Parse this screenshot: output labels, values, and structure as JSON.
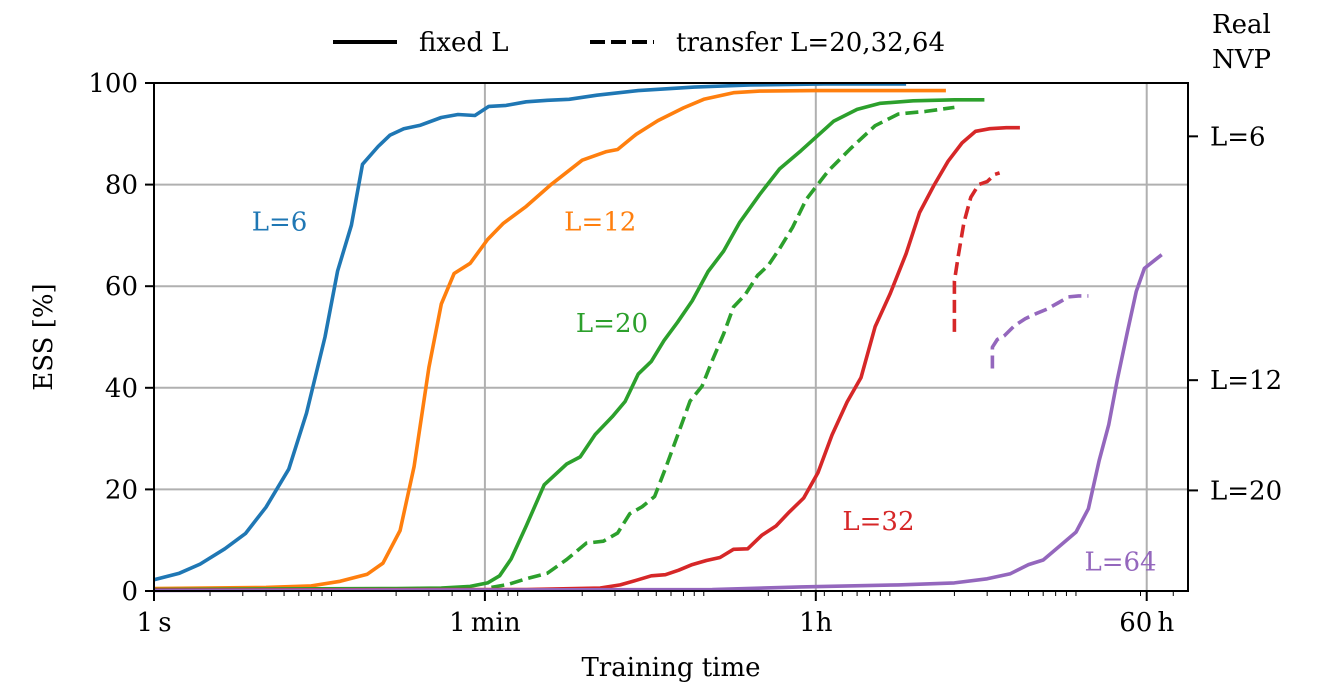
{
  "chart_data": {
    "type": "line",
    "title": "",
    "xlabel": "Training time",
    "ylabel": "ESS [%]",
    "x_scale": "log",
    "xlim_seconds": [
      1,
      360000
    ],
    "ylim": [
      0,
      100
    ],
    "grid": true,
    "x_ticks": [
      {
        "seconds": 1,
        "label": "1 s"
      },
      {
        "seconds": 60,
        "label": "1 min"
      },
      {
        "seconds": 3600,
        "label": "1h"
      },
      {
        "seconds": 216000,
        "label": "60 h"
      }
    ],
    "y_ticks": [
      0,
      20,
      40,
      60,
      80,
      100
    ],
    "legend": {
      "placement": "top",
      "entries": [
        {
          "label": "fixed L",
          "style": "solid"
        },
        {
          "label": "transfer L=20,32,64",
          "style": "dashed"
        }
      ]
    },
    "right_axis": {
      "title_lines": [
        "Real",
        "NVP"
      ],
      "ticks": [
        {
          "y": 89.5,
          "label": "L=6"
        },
        {
          "y": 41.5,
          "label": "L=12"
        },
        {
          "y": 19.8,
          "label": "L=20"
        }
      ]
    },
    "series": [
      {
        "label": "L=6",
        "color": "#1f77b4",
        "style": "solid",
        "label_at": {
          "x": 3.35,
          "y": 71
        },
        "points": [
          [
            1.0,
            2.2
          ],
          [
            1.37,
            3.5
          ],
          [
            1.77,
            5.3
          ],
          [
            2.4,
            8.3
          ],
          [
            3.1,
            11.3
          ],
          [
            4.0,
            16.5
          ],
          [
            5.3,
            24.0
          ],
          [
            6.6,
            35.0
          ],
          [
            8.3,
            50.0
          ],
          [
            9.7,
            63.0
          ],
          [
            11.5,
            72.0
          ],
          [
            13.2,
            84.0
          ],
          [
            16.0,
            87.5
          ],
          [
            18.5,
            89.7
          ],
          [
            22.0,
            91.0
          ],
          [
            27.0,
            91.7
          ],
          [
            35.0,
            93.2
          ],
          [
            43.0,
            93.8
          ],
          [
            53.0,
            93.6
          ],
          [
            63.0,
            95.4
          ],
          [
            78.0,
            95.6
          ],
          [
            100.0,
            96.3
          ],
          [
            130.0,
            96.6
          ],
          [
            170.0,
            96.8
          ],
          [
            240.0,
            97.6
          ],
          [
            400.0,
            98.5
          ],
          [
            800.0,
            99.2
          ],
          [
            1600.0,
            99.6
          ],
          [
            4000.0,
            99.8
          ],
          [
            8000.0,
            99.8
          ],
          [
            11000.0,
            99.8
          ]
        ]
      },
      {
        "label": "L=12",
        "color": "#ff7f0e",
        "style": "solid",
        "label_at": {
          "x": 160,
          "y": 71
        },
        "points": [
          [
            1.0,
            0.5
          ],
          [
            4.0,
            0.7
          ],
          [
            7.0,
            1.0
          ],
          [
            10.0,
            1.9
          ],
          [
            14.0,
            3.3
          ],
          [
            17.0,
            5.5
          ],
          [
            21.0,
            11.9
          ],
          [
            25.0,
            24.5
          ],
          [
            30.0,
            44.0
          ],
          [
            35.0,
            56.5
          ],
          [
            41.0,
            62.5
          ],
          [
            50.0,
            64.5
          ],
          [
            62.0,
            69.2
          ],
          [
            75.0,
            72.3
          ],
          [
            100.0,
            75.7
          ],
          [
            135.0,
            79.9
          ],
          [
            200.0,
            84.8
          ],
          [
            270.0,
            86.5
          ],
          [
            310.0,
            86.9
          ],
          [
            390.0,
            89.9
          ],
          [
            510.0,
            92.6
          ],
          [
            700.0,
            95.1
          ],
          [
            900.0,
            96.8
          ],
          [
            1300.0,
            98.1
          ],
          [
            1800.0,
            98.4
          ],
          [
            3500.0,
            98.5
          ],
          [
            9000.0,
            98.5
          ],
          [
            18000.0,
            98.5
          ]
        ]
      },
      {
        "label": "L=20",
        "color": "#2ca02c",
        "style": "solid",
        "label_at": {
          "x": 185,
          "y": 51
        },
        "points": [
          [
            1.0,
            0.3
          ],
          [
            20.0,
            0.5
          ],
          [
            35.0,
            0.6
          ],
          [
            50.0,
            0.9
          ],
          [
            62.0,
            1.6
          ],
          [
            72.0,
            3.0
          ],
          [
            83.0,
            6.3
          ],
          [
            100.0,
            12.8
          ],
          [
            125.0,
            20.9
          ],
          [
            165.0,
            25.0
          ],
          [
            195.0,
            26.4
          ],
          [
            235.0,
            30.8
          ],
          [
            290.0,
            34.3
          ],
          [
            340.0,
            37.3
          ],
          [
            400.0,
            42.7
          ],
          [
            470.0,
            45.2
          ],
          [
            550.0,
            49.3
          ],
          [
            650.0,
            52.9
          ],
          [
            780.0,
            57.1
          ],
          [
            950.0,
            62.9
          ],
          [
            1150.0,
            66.9
          ],
          [
            1400.0,
            72.5
          ],
          [
            1800.0,
            78.1
          ],
          [
            2300.0,
            83.1
          ],
          [
            3000.0,
            86.7
          ],
          [
            4500.0,
            92.5
          ],
          [
            6000.0,
            94.8
          ],
          [
            8000.0,
            96.0
          ],
          [
            12000.0,
            96.5
          ],
          [
            20000.0,
            96.7
          ],
          [
            29000.0,
            96.7
          ]
        ]
      },
      {
        "label": "transfer L=20",
        "color": "#2ca02c",
        "style": "dashed",
        "points": [
          [
            65.0,
            0.7
          ],
          [
            80.0,
            1.3
          ],
          [
            100.0,
            2.4
          ],
          [
            130.0,
            3.5
          ],
          [
            165.0,
            6.2
          ],
          [
            210.0,
            9.4
          ],
          [
            260.0,
            9.8
          ],
          [
            310.0,
            11.4
          ],
          [
            360.0,
            15.2
          ],
          [
            420.0,
            16.6
          ],
          [
            490.0,
            18.6
          ],
          [
            560.0,
            24.1
          ],
          [
            650.0,
            30.6
          ],
          [
            760.0,
            37.4
          ],
          [
            880.0,
            40.3
          ],
          [
            1000.0,
            45.4
          ],
          [
            1150.0,
            50.6
          ],
          [
            1300.0,
            55.9
          ],
          [
            1500.0,
            58.3
          ],
          [
            1750.0,
            62.1
          ],
          [
            2000.0,
            64.1
          ],
          [
            2300.0,
            67.4
          ],
          [
            2700.0,
            71.6
          ],
          [
            3200.0,
            77.1
          ],
          [
            4200.0,
            82.7
          ],
          [
            5500.0,
            87.0
          ],
          [
            7500.0,
            91.6
          ],
          [
            10000.0,
            93.9
          ],
          [
            14000.0,
            94.4
          ],
          [
            20000.0,
            95.2
          ]
        ]
      },
      {
        "label": "L=32",
        "color": "#d62728",
        "style": "solid",
        "label_at": {
          "x": 5000,
          "y": 12
        },
        "points": [
          [
            1.0,
            0.2
          ],
          [
            100.0,
            0.3
          ],
          [
            250.0,
            0.6
          ],
          [
            320.0,
            1.2
          ],
          [
            390.0,
            2.1
          ],
          [
            470.0,
            3.0
          ],
          [
            560.0,
            3.2
          ],
          [
            660.0,
            4.1
          ],
          [
            780.0,
            5.2
          ],
          [
            930.0,
            6.0
          ],
          [
            1100.0,
            6.6
          ],
          [
            1300.0,
            8.2
          ],
          [
            1550.0,
            8.3
          ],
          [
            1850.0,
            11.0
          ],
          [
            2200.0,
            12.8
          ],
          [
            2600.0,
            15.6
          ],
          [
            3100.0,
            18.3
          ],
          [
            3700.0,
            23.3
          ],
          [
            4400.0,
            30.7
          ],
          [
            5300.0,
            37.2
          ],
          [
            6300.0,
            42.0
          ],
          [
            7500.0,
            52.0
          ],
          [
            9000.0,
            58.4
          ],
          [
            11000.0,
            66.4
          ],
          [
            13000.0,
            74.5
          ],
          [
            15500.0,
            79.8
          ],
          [
            18500.0,
            84.6
          ],
          [
            22000.0,
            88.2
          ],
          [
            26000.0,
            90.5
          ],
          [
            31000.0,
            91.0
          ],
          [
            38000.0,
            91.2
          ],
          [
            45000.0,
            91.2
          ]
        ]
      },
      {
        "label": "transfer L=32",
        "color": "#d62728",
        "style": "dashed",
        "points": [
          [
            20000.0,
            51.0
          ],
          [
            20000.0,
            61.0
          ],
          [
            21000.0,
            66.0
          ],
          [
            22500.0,
            72.5
          ],
          [
            24500.0,
            77.5
          ],
          [
            27000.0,
            80.0
          ],
          [
            30000.0,
            80.6
          ],
          [
            33000.0,
            82.0
          ],
          [
            35000.0,
            82.3
          ]
        ]
      },
      {
        "label": "L=64",
        "color": "#9467bd",
        "style": "solid",
        "label_at": {
          "x": 100000,
          "y": 4
        },
        "points": [
          [
            1.0,
            0.1
          ],
          [
            1000.0,
            0.3
          ],
          [
            3000.0,
            0.8
          ],
          [
            10000.0,
            1.2
          ],
          [
            20000.0,
            1.6
          ],
          [
            30000.0,
            2.4
          ],
          [
            40000.0,
            3.4
          ],
          [
            50000.0,
            5.2
          ],
          [
            60000.0,
            6.1
          ],
          [
            75000.0,
            9.1
          ],
          [
            90000.0,
            11.6
          ],
          [
            105000.0,
            16.2
          ],
          [
            120000.0,
            25.7
          ],
          [
            135000.0,
            32.7
          ],
          [
            150000.0,
            41.5
          ],
          [
            170000.0,
            51.0
          ],
          [
            190000.0,
            59.0
          ],
          [
            210000.0,
            63.5
          ],
          [
            240000.0,
            65.2
          ],
          [
            260000.0,
            66.2
          ]
        ]
      },
      {
        "label": "transfer L=64",
        "color": "#9467bd",
        "style": "dashed",
        "points": [
          [
            32000.0,
            43.8
          ],
          [
            32000.0,
            48.0
          ],
          [
            34000.0,
            49.5
          ],
          [
            37000.0,
            50.2
          ],
          [
            42000.0,
            52.2
          ],
          [
            48000.0,
            53.6
          ],
          [
            55000.0,
            54.6
          ],
          [
            63000.0,
            55.5
          ],
          [
            72000.0,
            56.7
          ],
          [
            82000.0,
            57.9
          ],
          [
            93000.0,
            58.1
          ],
          [
            105000.0,
            58.1
          ]
        ]
      }
    ]
  }
}
